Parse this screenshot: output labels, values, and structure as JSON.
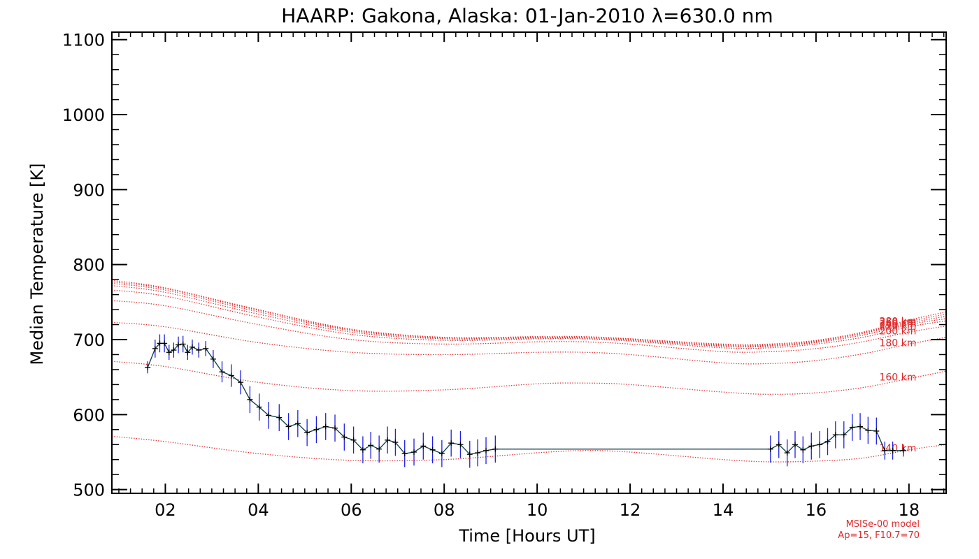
{
  "colors": {
    "data_line": "#0b3a46",
    "error_bar": "#1e1ee6",
    "marker": "#000000",
    "model_line": "#e0282a",
    "axis": "#000000",
    "background": "#ffffff"
  },
  "chart_data": {
    "type": "line",
    "title": "HAARP: Gakona,  Alaska: 01-Jan-2010 λ=630.0 nm",
    "xlabel": "Time [Hours UT]",
    "ylabel": "Median Temperature [K]",
    "xlim": [
      0.85,
      18.8
    ],
    "ylim": [
      495,
      1110
    ],
    "x_ticks": [
      2,
      4,
      6,
      8,
      10,
      12,
      14,
      16,
      18
    ],
    "x_tick_labels": [
      "02",
      "04",
      "06",
      "08",
      "10",
      "12",
      "14",
      "16",
      "18"
    ],
    "y_ticks": [
      500,
      600,
      700,
      800,
      900,
      1000,
      1100
    ],
    "y_tick_labels": [
      "500",
      "600",
      "700",
      "800",
      "900",
      "1000",
      "1100"
    ],
    "grid": false,
    "footnote": [
      "MSISe-00 model",
      "Ap=15, F10.7=70"
    ],
    "series": [
      {
        "name": "",
        "style": "line-with-errorbars",
        "x": [
          1.62,
          1.78,
          1.88,
          1.98,
          2.08,
          2.18,
          2.28,
          2.38,
          2.48,
          2.58,
          2.72,
          2.87,
          3.03,
          3.22,
          3.42,
          3.62,
          3.82,
          4.02,
          4.22,
          4.45,
          4.65,
          4.85,
          5.05,
          5.25,
          5.45,
          5.65,
          5.85,
          6.05,
          6.25,
          6.42,
          6.6,
          6.78,
          6.95,
          7.15,
          7.35,
          7.55,
          7.75,
          7.95,
          8.15,
          8.35,
          8.55,
          8.72,
          8.9,
          9.1,
          15.02,
          15.2,
          15.38,
          15.55,
          15.72,
          15.9,
          16.08,
          16.25,
          16.42,
          16.6,
          16.78,
          16.95,
          17.12,
          17.3,
          17.48,
          17.65,
          17.88
        ],
        "y": [
          663,
          688,
          695,
          695,
          683,
          686,
          693,
          694,
          683,
          690,
          686,
          688,
          674,
          657,
          652,
          643,
          620,
          610,
          599,
          596,
          584,
          588,
          576,
          580,
          584,
          582,
          570,
          566,
          553,
          559,
          554,
          566,
          563,
          548,
          550,
          558,
          553,
          548,
          562,
          560,
          547,
          549,
          552,
          554,
          554,
          560,
          549,
          560,
          553,
          558,
          560,
          564,
          573,
          573,
          583,
          584,
          579,
          578,
          552,
          552,
          552
        ],
        "err": [
          8,
          12,
          12,
          12,
          10,
          10,
          11,
          11,
          10,
          10,
          10,
          10,
          12,
          14,
          15,
          16,
          18,
          18,
          18,
          18,
          18,
          18,
          18,
          18,
          18,
          18,
          18,
          18,
          18,
          18,
          18,
          18,
          18,
          18,
          18,
          18,
          18,
          18,
          18,
          18,
          18,
          18,
          18,
          18,
          18,
          18,
          18,
          18,
          18,
          18,
          18,
          18,
          18,
          18,
          18,
          18,
          18,
          18,
          12,
          12,
          8
        ]
      },
      {
        "name": "140 km",
        "style": "dotted",
        "x": [
          0.85,
          2,
          4,
          6,
          8,
          10,
          11,
          12,
          14,
          15,
          16,
          17,
          18,
          18.8
        ],
        "y": [
          571,
          564,
          548,
          539,
          540,
          549,
          552,
          550,
          540,
          537,
          538,
          542,
          553,
          560
        ]
      },
      {
        "name": "160 km",
        "style": "dotted",
        "x": [
          0.85,
          2,
          4,
          6,
          8,
          10,
          11,
          12,
          14,
          15,
          16,
          17,
          18,
          18.8
        ],
        "y": [
          671,
          664,
          643,
          632,
          633,
          641,
          642,
          640,
          630,
          627,
          629,
          636,
          648,
          658
        ]
      },
      {
        "name": "180 km",
        "style": "dotted",
        "x": [
          0.85,
          2,
          4,
          6,
          8,
          10,
          11,
          12,
          14,
          15,
          16,
          17,
          18,
          18.8
        ],
        "y": [
          723,
          717,
          696,
          683,
          680,
          683,
          683,
          680,
          669,
          668,
          672,
          681,
          694,
          703
        ]
      },
      {
        "name": "200 km",
        "style": "dotted",
        "x": [
          0.85,
          2,
          4,
          6,
          8,
          10,
          11,
          12,
          14,
          15,
          16,
          17,
          18,
          18.8
        ],
        "y": [
          752,
          745,
          720,
          700,
          694,
          697,
          697,
          694,
          684,
          684,
          688,
          697,
          710,
          718
        ]
      },
      {
        "name": "220 km",
        "style": "dotted",
        "x": [
          0.85,
          2,
          4,
          6,
          8,
          10,
          11,
          12,
          14,
          15,
          16,
          17,
          18,
          18.8
        ],
        "y": [
          766,
          758,
          730,
          707,
          699,
          701,
          701,
          698,
          689,
          689,
          694,
          703,
          717,
          725
        ]
      },
      {
        "name": "240 km",
        "style": "dotted",
        "x": [
          0.85,
          2,
          4,
          6,
          8,
          10,
          11,
          12,
          14,
          15,
          16,
          17,
          18,
          18.8
        ],
        "y": [
          772,
          763,
          734,
          710,
          701,
          702,
          702,
          699,
          691,
          691,
          696,
          706,
          720,
          728
        ]
      },
      {
        "name": "260 km",
        "style": "dotted",
        "x": [
          0.85,
          2,
          4,
          6,
          8,
          10,
          11,
          12,
          14,
          15,
          16,
          17,
          18,
          18.8
        ],
        "y": [
          775,
          766,
          737,
          712,
          702,
          703,
          703,
          700,
          692,
          692,
          697,
          708,
          722,
          731
        ]
      },
      {
        "name": "280 km",
        "style": "dotted",
        "x": [
          0.85,
          2,
          4,
          6,
          8,
          10,
          11,
          12,
          14,
          15,
          16,
          17,
          18,
          18.8
        ],
        "y": [
          777,
          768,
          739,
          713,
          703,
          703,
          703,
          701,
          693,
          693,
          698,
          709,
          724,
          734
        ]
      },
      {
        "name": "",
        "style": "dotted",
        "x": [
          0.85,
          2,
          4,
          6,
          8,
          10,
          11,
          12,
          14,
          15,
          16,
          17,
          18,
          18.8
        ],
        "y": [
          779,
          769,
          740,
          714,
          703,
          704,
          704,
          701,
          694,
          694,
          699,
          710,
          726,
          737
        ]
      }
    ],
    "series_labels": [
      {
        "text": "140 km",
        "series": 1
      },
      {
        "text": "160 km",
        "series": 2
      },
      {
        "text": "180 km",
        "series": 3
      },
      {
        "text": "200 km",
        "series": 4
      },
      {
        "text": "220 km",
        "series": 5
      },
      {
        "text": "240 km",
        "series": 6
      },
      {
        "text": "260 km",
        "series": 7
      },
      {
        "text": "280 km",
        "series": 8
      }
    ]
  }
}
